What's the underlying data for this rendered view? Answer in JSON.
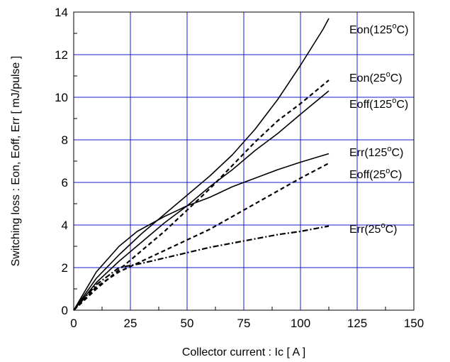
{
  "chart_data": {
    "type": "line",
    "title": "",
    "xlabel": "Collector current : Ic [ A ]",
    "ylabel": "Switching loss : Eon, Eoff, Err [ mJ/pulse ]",
    "xlim": [
      0,
      150
    ],
    "ylim": [
      0,
      14
    ],
    "x_ticks": [
      "0",
      "25",
      "50",
      "75",
      "100",
      "125",
      "150"
    ],
    "y_ticks": [
      "0",
      "2",
      "4",
      "6",
      "8",
      "10",
      "12",
      "14"
    ],
    "grid": true,
    "grid_color": "#1a1ad6",
    "legend": "inline labels at right end of curves",
    "series": [
      {
        "name": "Eon(125°C)",
        "label_main": "Eon(125",
        "label_deg": "o",
        "label_end": "C)",
        "style": "solid",
        "x": [
          0,
          10,
          20,
          30,
          40,
          50,
          60,
          70,
          80,
          90,
          100,
          110,
          112.5
        ],
        "y": [
          0,
          1.5,
          2.6,
          3.6,
          4.5,
          5.4,
          6.3,
          7.3,
          8.5,
          9.9,
          11.5,
          13.2,
          13.7
        ]
      },
      {
        "name": "Eon(25°C)",
        "label_main": "Eon(25",
        "label_deg": "o",
        "label_end": "C)",
        "style": "dashed",
        "x": [
          0,
          10,
          20,
          30,
          40,
          50,
          60,
          70,
          80,
          90,
          100,
          112.5
        ],
        "y": [
          0,
          1.0,
          1.9,
          2.8,
          3.7,
          4.7,
          5.7,
          6.8,
          7.9,
          8.9,
          9.7,
          10.8
        ]
      },
      {
        "name": "Eoff(125°C)",
        "label_main": "Eoff(125",
        "label_deg": "o",
        "label_end": "C)",
        "style": "solid",
        "x": [
          0,
          10,
          20,
          30,
          40,
          50,
          60,
          70,
          80,
          90,
          100,
          112.5
        ],
        "y": [
          0,
          1.3,
          2.3,
          3.2,
          4.1,
          4.9,
          5.8,
          6.6,
          7.5,
          8.3,
          9.2,
          10.3
        ]
      },
      {
        "name": "Err(125°C)",
        "label_main": "Err(125",
        "label_deg": "o",
        "label_end": "C)",
        "style": "solid",
        "x": [
          0,
          10,
          20,
          28,
          40,
          50,
          60,
          70,
          80,
          90,
          100,
          112.5
        ],
        "y": [
          0,
          1.8,
          3.0,
          3.7,
          4.4,
          4.9,
          5.3,
          5.8,
          6.2,
          6.6,
          6.95,
          7.35
        ]
      },
      {
        "name": "Eoff(25°C)",
        "label_main": "Eoff(25",
        "label_deg": "o",
        "label_end": "C)",
        "style": "dashed",
        "x": [
          0,
          10,
          20,
          30,
          40,
          50,
          60,
          70,
          80,
          90,
          100,
          112.5
        ],
        "y": [
          0,
          1.1,
          1.8,
          2.3,
          2.8,
          3.3,
          3.8,
          4.4,
          5.0,
          5.6,
          6.2,
          6.9
        ]
      },
      {
        "name": "Err(25°C)",
        "label_main": "Err(25",
        "label_deg": "o",
        "label_end": "C)",
        "style": "dashdot",
        "x": [
          0,
          10,
          20,
          30,
          40,
          50,
          60,
          70,
          80,
          90,
          100,
          112.5
        ],
        "y": [
          0,
          1.2,
          2.0,
          2.2,
          2.45,
          2.7,
          2.95,
          3.15,
          3.35,
          3.55,
          3.7,
          3.95
        ]
      }
    ]
  }
}
